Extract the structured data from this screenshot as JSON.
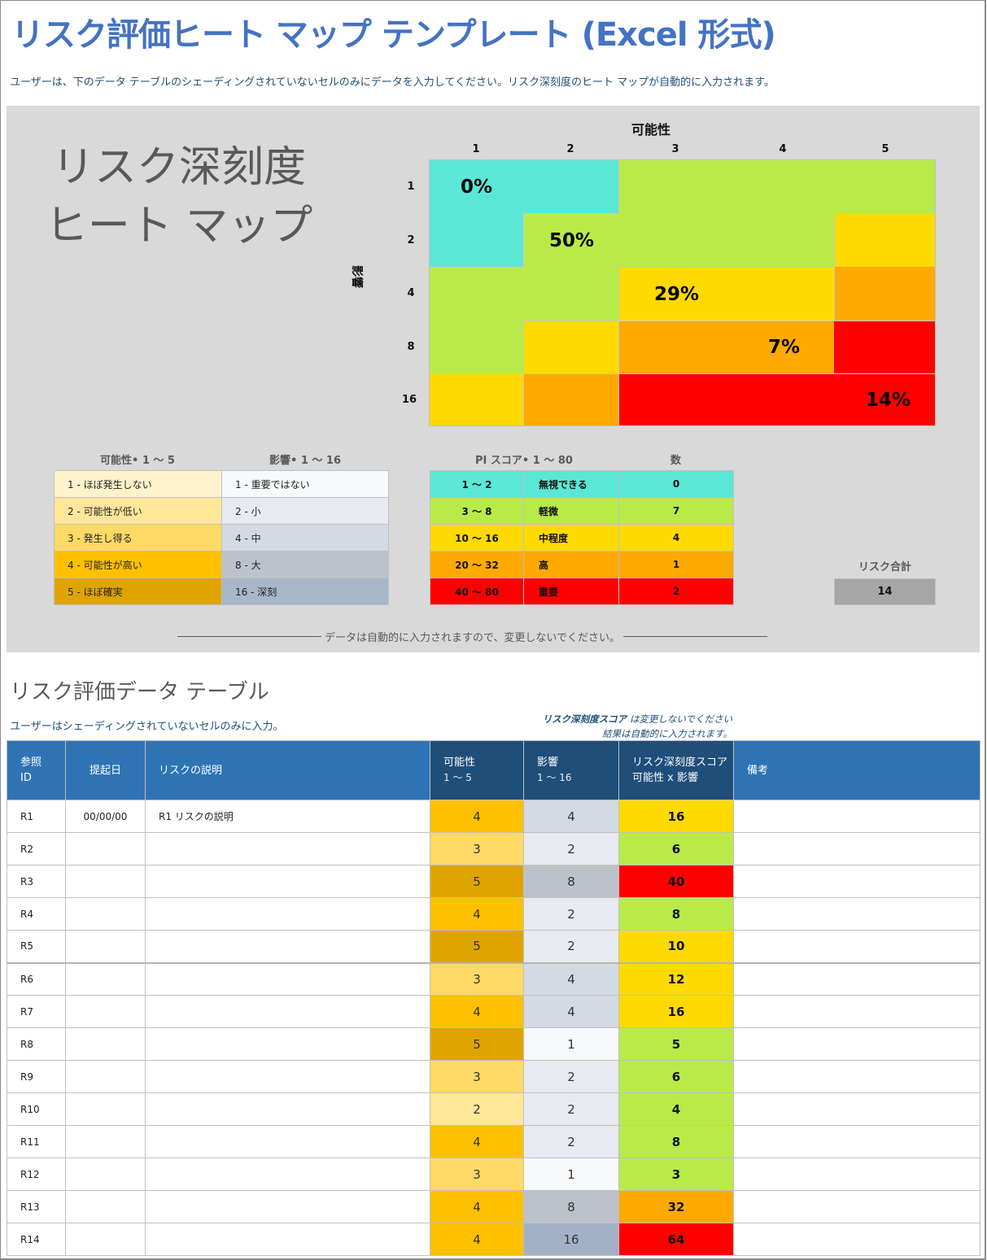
{
  "title": "リスク評価ヒート マップ テンプレート (Excel 形式)",
  "subtitle": "ユーザーは、下のデータ テーブルのシェーディングされていないセルのみにデータを入力してください。リスク深刻度のヒート マップが自動的に入力されます。",
  "heatmap_panel": {
    "big_title_line1": "リスク深刻度",
    "big_title_line2": "ヒート マップ",
    "x_axis_title": "可能性",
    "y_axis_title": "影響",
    "col_labels": [
      "1",
      "2",
      "3",
      "4",
      "5"
    ],
    "row_labels": [
      "1",
      "2",
      "4",
      "8",
      "16"
    ],
    "colors": {
      "negligible": "#5BE7D6",
      "minor": "#B8EB48",
      "moderate": "#FFDA00",
      "high": "#FFAA00",
      "critical": "#FF0000"
    },
    "percentages": {
      "negligible": "0%",
      "minor": "50%",
      "moderate": "29%",
      "high": "7%",
      "critical": "14%"
    }
  },
  "legend_likelihood": {
    "header": "可能性• 1 ～ 5",
    "items": [
      {
        "label": "1 - ほぼ発生しない",
        "color": "#FFF2CC"
      },
      {
        "label": "2 - 可能性が低い",
        "color": "#FFE699"
      },
      {
        "label": "3 - 発生し得る",
        "color": "#FFD966"
      },
      {
        "label": "4 - 可能性が高い",
        "color": "#FFC000"
      },
      {
        "label": "5 - ほぼ確実",
        "color": "#DFA400"
      }
    ]
  },
  "legend_impact": {
    "header": "影響• 1 ～ 16",
    "items": [
      {
        "label": "1 - 重要ではない",
        "color": "#F7F9FB"
      },
      {
        "label": "2 - 小",
        "color": "#E7EBF1"
      },
      {
        "label": "4 - 中",
        "color": "#D4DAE3"
      },
      {
        "label": "8 - 大",
        "color": "#BDC2CA"
      },
      {
        "label": "16 - 深刻",
        "color": "#A8B6CA"
      }
    ]
  },
  "pi_score_table": {
    "header": "PI スコア• 1 ～ 80",
    "count_header": "数",
    "rows": [
      {
        "range": "1 ～ 2",
        "level": "無視できる",
        "count": "0",
        "color": "#5BE7D6"
      },
      {
        "range": "3 ～ 8",
        "level": "軽微",
        "count": "7",
        "color": "#B8EB48"
      },
      {
        "range": "10 ～ 16",
        "level": "中程度",
        "count": "4",
        "color": "#FFDA00"
      },
      {
        "range": "20 ～ 32",
        "level": "高",
        "count": "1",
        "color": "#FFAA00"
      },
      {
        "range": "40 ～ 80",
        "level": "重要",
        "count": "2",
        "color": "#FF0000"
      }
    ]
  },
  "risk_total": {
    "label": "リスク合計",
    "value": "14"
  },
  "auto_note": "データは自動的に入力されますので、変更しないでください。",
  "data_section": {
    "title": "リスク評価データ テーブル",
    "instruction": "ユーザーはシェーディングされていないセルのみに入力。",
    "score_note_bold": "リスク深刻度スコア",
    "score_note_rest": " は変更しないでください",
    "score_note_line2": "結果は自動的に入力されます。"
  },
  "table": {
    "headers": {
      "ref_id_line1": "参照",
      "ref_id_line2": "ID",
      "date": "提起日",
      "description": "リスクの説明",
      "likelihood_line1": "可能性",
      "likelihood_line2": "1 ～ 5",
      "impact_line1": "影響",
      "impact_line2": "1 ～ 16",
      "score_line1": "リスク深刻度スコア",
      "score_line2": "可能性 x 影響",
      "notes": "備考"
    },
    "header_colors": {
      "light": "#2E74B5",
      "dark": "#1F4E79"
    },
    "rows": [
      {
        "id": "R1",
        "date": "00/00/00",
        "description": "R1 リスクの説明",
        "likelihood": "4",
        "impact": "4",
        "score": "16",
        "notes": ""
      },
      {
        "id": "R2",
        "date": "",
        "description": "",
        "likelihood": "3",
        "impact": "2",
        "score": "6",
        "notes": ""
      },
      {
        "id": "R3",
        "date": "",
        "description": "",
        "likelihood": "5",
        "impact": "8",
        "score": "40",
        "notes": ""
      },
      {
        "id": "R4",
        "date": "",
        "description": "",
        "likelihood": "4",
        "impact": "2",
        "score": "8",
        "notes": ""
      },
      {
        "id": "R5",
        "date": "",
        "description": "",
        "likelihood": "5",
        "impact": "2",
        "score": "10",
        "notes": ""
      },
      {
        "id": "R6",
        "date": "",
        "description": "",
        "likelihood": "3",
        "impact": "4",
        "score": "12",
        "notes": ""
      },
      {
        "id": "R7",
        "date": "",
        "description": "",
        "likelihood": "4",
        "impact": "4",
        "score": "16",
        "notes": ""
      },
      {
        "id": "R8",
        "date": "",
        "description": "",
        "likelihood": "5",
        "impact": "1",
        "score": "5",
        "notes": ""
      },
      {
        "id": "R9",
        "date": "",
        "description": "",
        "likelihood": "3",
        "impact": "2",
        "score": "6",
        "notes": ""
      },
      {
        "id": "R10",
        "date": "",
        "description": "",
        "likelihood": "2",
        "impact": "2",
        "score": "4",
        "notes": ""
      },
      {
        "id": "R11",
        "date": "",
        "description": "",
        "likelihood": "4",
        "impact": "2",
        "score": "8",
        "notes": ""
      },
      {
        "id": "R12",
        "date": "",
        "description": "",
        "likelihood": "3",
        "impact": "1",
        "score": "3",
        "notes": ""
      },
      {
        "id": "R13",
        "date": "",
        "description": "",
        "likelihood": "4",
        "impact": "8",
        "score": "32",
        "notes": ""
      },
      {
        "id": "R14",
        "date": "",
        "description": "",
        "likelihood": "4",
        "impact": "16",
        "score": "64",
        "notes": ""
      }
    ]
  }
}
